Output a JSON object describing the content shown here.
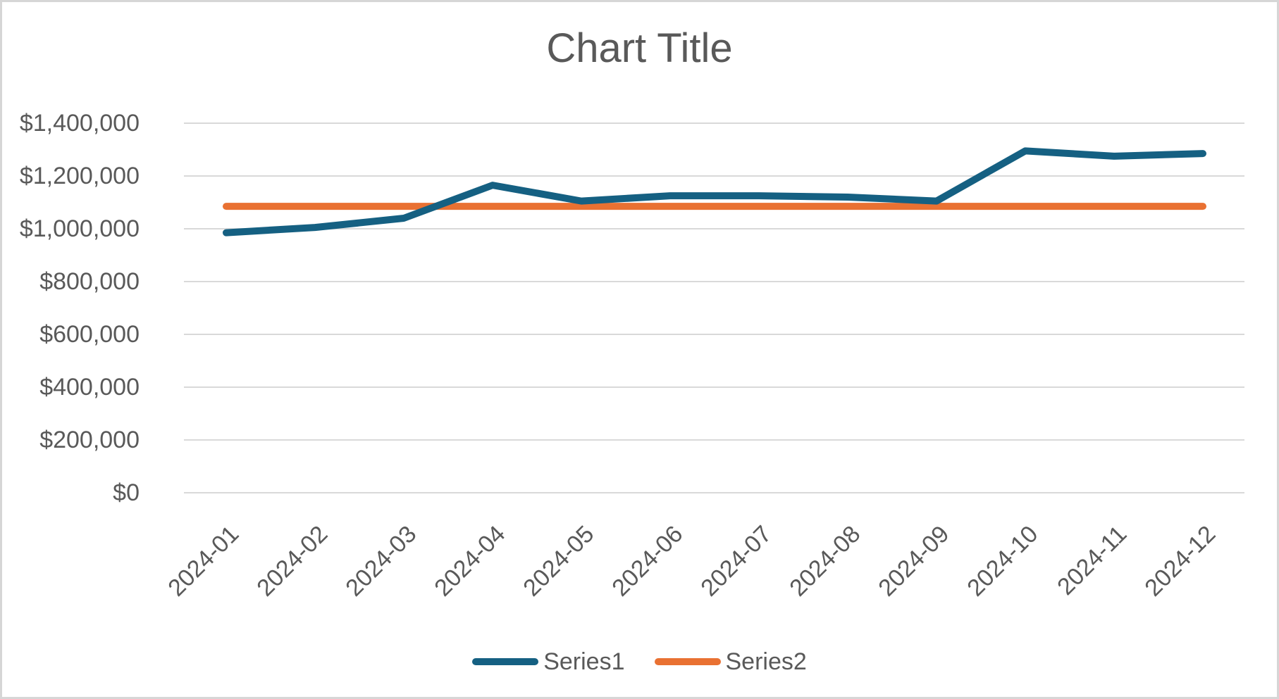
{
  "frame": {
    "background_color": "#FFFFFF",
    "border_color": "#D6D6D6"
  },
  "chart_data": {
    "type": "line",
    "title": "Chart Title",
    "categories": [
      "2024-01",
      "2024-02",
      "2024-03",
      "2024-04",
      "2024-05",
      "2024-06",
      "2024-07",
      "2024-08",
      "2024-09",
      "2024-10",
      "2024-11",
      "2024-12"
    ],
    "series": [
      {
        "name": "Series1",
        "color": "#156082",
        "values": [
          985000,
          1005000,
          1040000,
          1165000,
          1105000,
          1125000,
          1125000,
          1120000,
          1105000,
          1295000,
          1275000,
          1285000
        ]
      },
      {
        "name": "Series2",
        "color": "#E97132",
        "values": [
          1085000,
          1085000,
          1085000,
          1085000,
          1085000,
          1085000,
          1085000,
          1085000,
          1085000,
          1085000,
          1085000,
          1085000
        ]
      }
    ],
    "xlabel": "",
    "ylabel": "",
    "ylim": [
      0,
      1400000
    ],
    "ytick_step": 200000,
    "ytick_labels": [
      "$0",
      "$200,000",
      "$400,000",
      "$600,000",
      "$800,000",
      "$1,000,000",
      "$1,200,000",
      "$1,400,000"
    ],
    "x_label_rotation": -45,
    "grid": true,
    "gridline_color": "#D9D9D9",
    "text_color": "#595959",
    "legend_position": "bottom"
  }
}
